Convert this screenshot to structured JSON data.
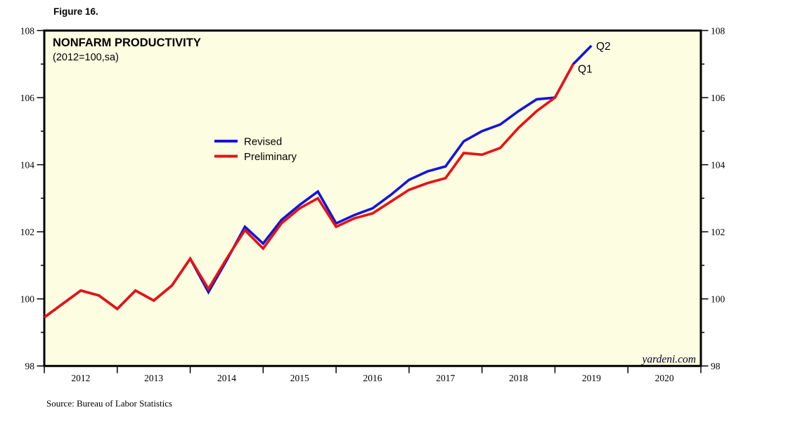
{
  "figure_label": "Figure 16.",
  "watermark": "yardeni.com",
  "source": "Source: Bureau of Labor Statistics",
  "chart_data": {
    "type": "line",
    "title": "NONFARM PRODUCTIVITY",
    "subtitle": "(2012=100,sa)",
    "background": "#FDFDE1",
    "axis_color": "#000000",
    "grid": false,
    "legend_position": "upper-left-inside",
    "x_range": [
      2012,
      2021
    ],
    "y_range": [
      98,
      108
    ],
    "y_major_ticks": [
      98,
      100,
      102,
      104,
      106,
      108
    ],
    "y_minor_ticks": [
      99,
      101,
      103,
      105,
      107
    ],
    "x_year_ticks": [
      2012,
      2013,
      2014,
      2015,
      2016,
      2017,
      2018,
      2019,
      2020,
      2021
    ],
    "year_labels": [
      "2012",
      "2013",
      "2014",
      "2015",
      "2016",
      "2017",
      "2018",
      "2019",
      "2020"
    ],
    "x_start": 2012.0,
    "x_step": 0.25,
    "first_point_quarter": "2011Q4",
    "series": [
      {
        "name": "Revised",
        "color": "#1414DC",
        "last_quarter": "2019Q2",
        "values": [
          99.45,
          99.85,
          100.25,
          100.1,
          99.7,
          100.25,
          99.95,
          100.4,
          101.2,
          100.2,
          101.15,
          102.15,
          101.65,
          102.35,
          102.8,
          103.2,
          102.25,
          102.5,
          102.7,
          103.1,
          103.55,
          103.8,
          103.95,
          104.7,
          105.0,
          105.2,
          105.6,
          105.95,
          106.0,
          107.0,
          107.55
        ]
      },
      {
        "name": "Preliminary",
        "color": "#E81212",
        "last_quarter": "2019Q1",
        "values": [
          99.45,
          99.85,
          100.25,
          100.1,
          99.7,
          100.25,
          99.95,
          100.4,
          101.2,
          100.3,
          101.2,
          102.05,
          101.5,
          102.25,
          102.7,
          103.0,
          102.15,
          102.4,
          102.55,
          102.9,
          103.25,
          103.45,
          103.6,
          104.35,
          104.3,
          104.5,
          105.1,
          105.6,
          106.0,
          107.0
        ]
      }
    ],
    "end_labels": [
      {
        "text": "Q2",
        "color": "#1414DC"
      },
      {
        "text": "Q1",
        "color": "#E81212"
      }
    ]
  }
}
